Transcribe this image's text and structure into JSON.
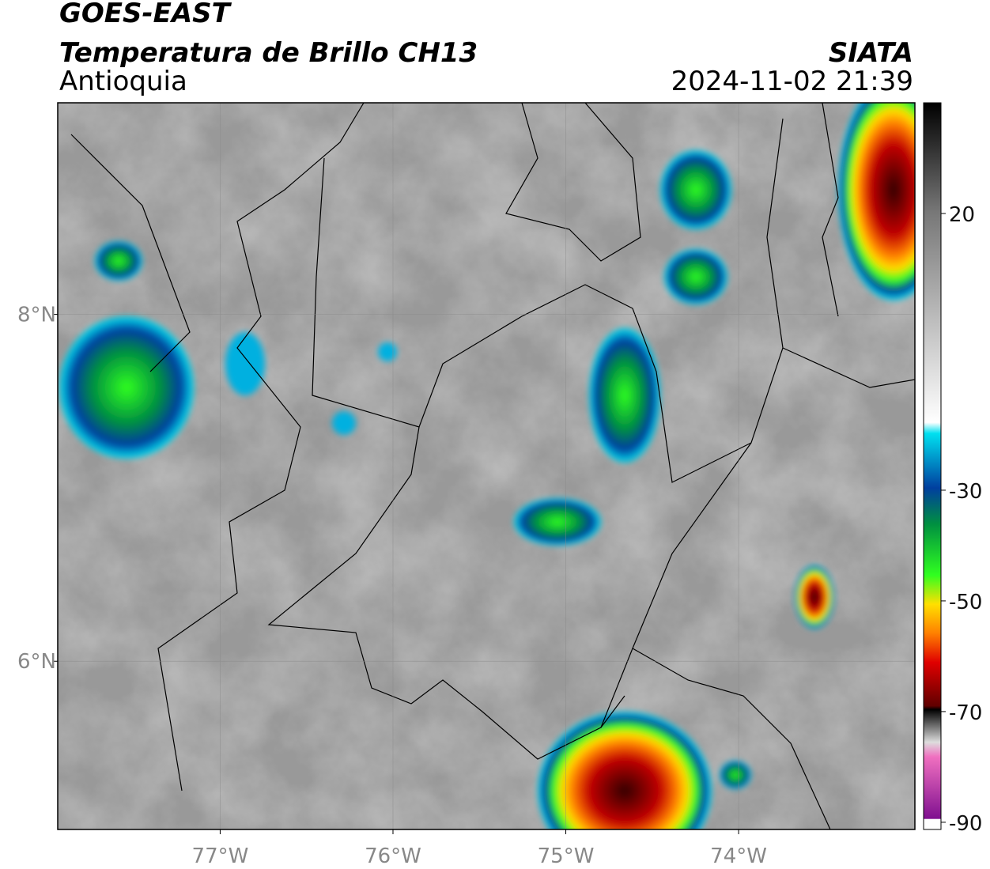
{
  "map": {
    "title": "GOES-EAST",
    "subtitle": "Temperatura de Brillo CH13",
    "region": "Antioquia",
    "source": "SIATA",
    "datetime": "2024-11-02 21:39",
    "xlim": [
      -77.94,
      -72.98
    ],
    "ylim": [
      5.03,
      9.22
    ],
    "xticks": [
      {
        "value": -77,
        "label": "77°W"
      },
      {
        "value": -76,
        "label": "76°W"
      },
      {
        "value": -75,
        "label": "75°W"
      },
      {
        "value": -74,
        "label": "74°W"
      }
    ],
    "yticks": [
      {
        "value": 8,
        "label": "8°N"
      },
      {
        "value": 6,
        "label": "6°N"
      }
    ],
    "colorbar": {
      "lim": [
        -91.3,
        40
      ],
      "ticks": [
        20,
        -30,
        -50,
        -70,
        -90
      ]
    }
  }
}
